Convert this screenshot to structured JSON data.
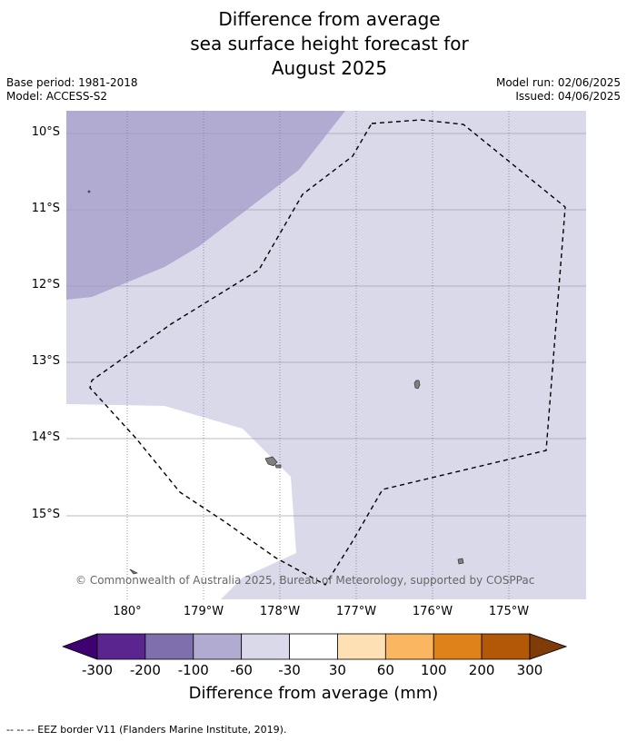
{
  "title": {
    "line1": "Difference from average",
    "line2": "sea surface height forecast for",
    "line3": "August 2025"
  },
  "meta": {
    "base_period": "Base period: 1981-2018",
    "model": "Model: ACCESS-S2",
    "model_run": "Model run: 02/06/2025",
    "issued": "Issued: 04/06/2025"
  },
  "map": {
    "lat_labels": [
      "10°S",
      "11°S",
      "12°S",
      "13°S",
      "14°S",
      "15°S"
    ],
    "lon_labels": [
      "180°",
      "179°W",
      "178°W",
      "177°W",
      "176°W",
      "175°W"
    ],
    "copyright": "© Commonwealth of Australia 2025, Bureau of Meteorology, supported by COSPPac",
    "colors": {
      "minus100_to_minus60": "#b1aad1",
      "minus60_to_minus30": "#d9d9ea",
      "minus30_to_30": "#ffffff",
      "land": "#808080",
      "eez_border": "#000000"
    }
  },
  "colorbar": {
    "labels": [
      "-300",
      "-200",
      "-100",
      "-60",
      "-30",
      "30",
      "60",
      "100",
      "200",
      "300"
    ],
    "colors": [
      "#3f0071",
      "#5b2590",
      "#7f6fad",
      "#b1aad1",
      "#d9d9ea",
      "#ffffff",
      "#fee0b5",
      "#fbb661",
      "#e0821a",
      "#b35806",
      "#7f3b08"
    ],
    "title": "Difference from average (mm)"
  },
  "footnote": "--  --  -- EEZ border V11 (Flanders Marine Institute, 2019)."
}
